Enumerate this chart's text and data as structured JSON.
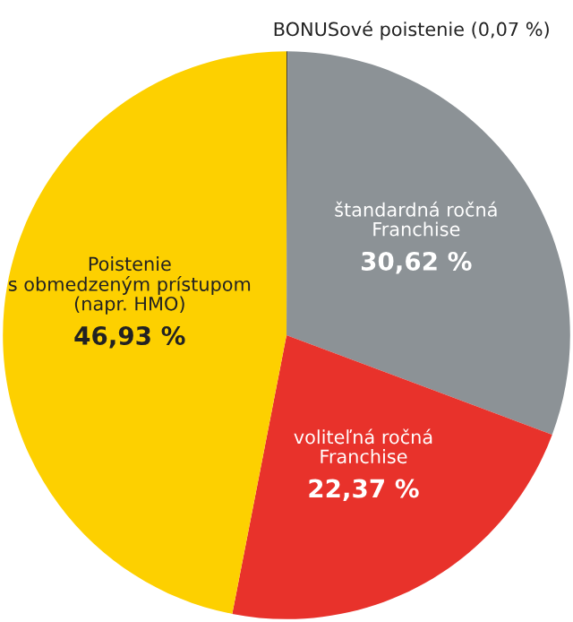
{
  "chart_data": {
    "type": "pie",
    "categories": [
      "BONUSové poistenie (0,07 %)",
      "štandardná ročná\nFranchise",
      "voliteľná ročná\nFranchise",
      "Poistenie\ns obmedzeným prístupom\n(napr. HMO)"
    ],
    "values": [
      0.07,
      30.62,
      22.37,
      46.93
    ],
    "value_labels": [
      null,
      "30,62 %",
      "22,37 %",
      "46,93 %"
    ],
    "colors": [
      "#3a3a3a",
      "#8c9296",
      "#e8322b",
      "#fdd000"
    ]
  }
}
